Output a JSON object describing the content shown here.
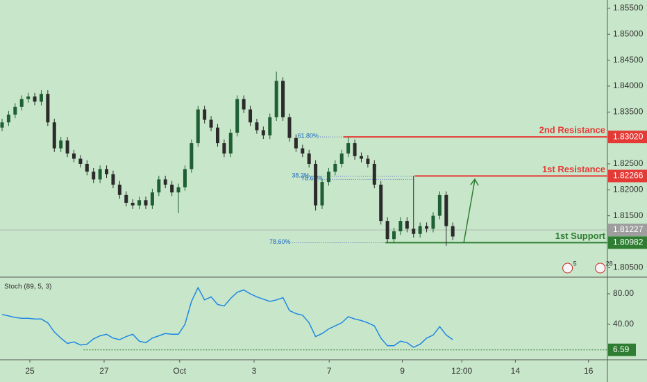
{
  "chart_data": [
    {
      "type": "candlestick",
      "xlim": [
        0,
        93
      ],
      "ylim": [
        1.8033,
        1.8566
      ],
      "yticks": [
        {
          "value": 1.855,
          "label": "1.85500"
        },
        {
          "value": 1.85,
          "label": "1.85000"
        },
        {
          "value": 1.845,
          "label": "1.84500"
        },
        {
          "value": 1.84,
          "label": "1.84000"
        },
        {
          "value": 1.835,
          "label": "1.83500"
        },
        {
          "value": 1.825,
          "label": "1.82500"
        },
        {
          "value": 1.82,
          "label": "1.82000"
        },
        {
          "value": 1.815,
          "label": "1.81500"
        },
        {
          "value": 1.805,
          "label": "1.80500"
        }
      ],
      "up_color": "#1f5f35",
      "down_color": "#2b2b2b",
      "open": [
        1.832,
        1.833,
        1.8345,
        1.836,
        1.8375,
        1.838,
        1.837,
        1.8385,
        1.833,
        1.828,
        1.8295,
        1.827,
        1.826,
        1.825,
        1.8235,
        1.822,
        1.824,
        1.823,
        1.821,
        1.819,
        1.8175,
        1.817,
        1.818,
        1.817,
        1.8195,
        1.822,
        1.821,
        1.8195,
        1.8205,
        1.824,
        1.829,
        1.8355,
        1.8335,
        1.832,
        1.829,
        1.827,
        1.831,
        1.8375,
        1.8355,
        1.833,
        1.8315,
        1.8305,
        1.834,
        1.841,
        1.834,
        1.83,
        1.828,
        1.827,
        1.825,
        1.817,
        1.8215,
        1.8235,
        1.825,
        1.827,
        1.829,
        1.8265,
        1.826,
        1.825,
        1.821,
        1.814,
        1.8105,
        1.812,
        1.814,
        1.8125,
        1.8115,
        1.813,
        1.8125,
        1.815,
        1.819,
        1.813
      ],
      "high": [
        1.8337,
        1.8352,
        1.8367,
        1.8382,
        1.8387,
        1.8387,
        1.8392,
        1.8392,
        1.8337,
        1.8302,
        1.8302,
        1.8277,
        1.8267,
        1.8257,
        1.8242,
        1.8247,
        1.8247,
        1.8237,
        1.8217,
        1.8197,
        1.8182,
        1.8187,
        1.8187,
        1.8202,
        1.8227,
        1.8227,
        1.8217,
        1.8212,
        1.8247,
        1.8297,
        1.8362,
        1.8362,
        1.8342,
        1.8327,
        1.8297,
        1.8317,
        1.8382,
        1.8382,
        1.8362,
        1.8337,
        1.8322,
        1.8347,
        1.8428,
        1.8417,
        1.8347,
        1.8307,
        1.8287,
        1.8277,
        1.8257,
        1.8222,
        1.8242,
        1.8257,
        1.8277,
        1.8302,
        1.8297,
        1.8272,
        1.8267,
        1.8257,
        1.8217,
        1.8147,
        1.8127,
        1.8147,
        1.8147,
        1.8227,
        1.8137,
        1.8137,
        1.8157,
        1.8197,
        1.8197,
        1.8137
      ],
      "low": [
        1.8313,
        1.8323,
        1.8338,
        1.8353,
        1.8368,
        1.8363,
        1.8363,
        1.8323,
        1.8273,
        1.8273,
        1.8263,
        1.8253,
        1.8243,
        1.8228,
        1.8213,
        1.8213,
        1.8223,
        1.8203,
        1.8183,
        1.8168,
        1.8163,
        1.8163,
        1.8163,
        1.8163,
        1.8188,
        1.8203,
        1.8188,
        1.8155,
        1.8198,
        1.8233,
        1.8283,
        1.8328,
        1.8313,
        1.8283,
        1.8263,
        1.8263,
        1.8303,
        1.8348,
        1.8323,
        1.8308,
        1.8298,
        1.8298,
        1.8333,
        1.8333,
        1.8293,
        1.8273,
        1.8263,
        1.8243,
        1.816,
        1.8163,
        1.8208,
        1.8228,
        1.8243,
        1.8263,
        1.8258,
        1.8253,
        1.8243,
        1.8203,
        1.8133,
        1.8098,
        1.8098,
        1.8113,
        1.8118,
        1.8108,
        1.8108,
        1.8118,
        1.8118,
        1.8143,
        1.8092,
        1.8103
      ],
      "close": [
        1.833,
        1.8345,
        1.836,
        1.8375,
        1.838,
        1.837,
        1.8385,
        1.833,
        1.828,
        1.8295,
        1.827,
        1.826,
        1.825,
        1.8235,
        1.822,
        1.824,
        1.823,
        1.821,
        1.819,
        1.8175,
        1.817,
        1.818,
        1.817,
        1.8195,
        1.822,
        1.821,
        1.8195,
        1.8205,
        1.824,
        1.829,
        1.8355,
        1.8335,
        1.832,
        1.829,
        1.827,
        1.831,
        1.8375,
        1.8355,
        1.833,
        1.8315,
        1.8305,
        1.834,
        1.841,
        1.834,
        1.83,
        1.828,
        1.827,
        1.825,
        1.817,
        1.8215,
        1.8235,
        1.825,
        1.827,
        1.829,
        1.8265,
        1.826,
        1.825,
        1.821,
        1.814,
        1.8105,
        1.812,
        1.814,
        1.8125,
        1.8115,
        1.813,
        1.8125,
        1.815,
        1.819,
        1.813,
        1.811
      ],
      "last": {
        "value": 1.81227,
        "label": "1.81227",
        "color": "#9e9e9e"
      },
      "levels": [
        {
          "name": "2nd Resistance",
          "value": 1.8302,
          "label": "1.83020",
          "color": "#e53935",
          "x_start": 52.6
        },
        {
          "name": "1st Resistance",
          "value": 1.82266,
          "label": "1.82266",
          "color": "#e53935",
          "x_start": 63.5
        },
        {
          "name": "1st Support",
          "value": 1.80982,
          "label": "1.80982",
          "color": "#2e7d32",
          "x_start": 59
        }
      ],
      "fibs": [
        {
          "label": "61.80%",
          "value": 1.8302,
          "x_start": 49,
          "x_end": 52.6
        },
        {
          "label": "38.2%",
          "value": 1.8226,
          "x_start": 47.6,
          "x_end": 63.5
        },
        {
          "label": "78.60%",
          "value": 1.822,
          "x_start": 49.6,
          "x_end": 63.5
        },
        {
          "label": "78.60%",
          "value": 1.8098,
          "x_start": 44.7,
          "x_end": 59
        }
      ],
      "events": [
        {
          "label": "5",
          "x": 86.9
        },
        {
          "label": "28",
          "x": 91.9
        }
      ]
    },
    {
      "type": "line",
      "title": "Stoch (89, 5, 3)",
      "xlim": [
        0,
        93
      ],
      "ylim": [
        -6.4,
        100.9
      ],
      "yticks": [
        {
          "value": 80,
          "label": "80.00"
        },
        {
          "value": 40,
          "label": "40.00"
        }
      ],
      "xticks": [
        {
          "value": 4.57,
          "label": "25"
        },
        {
          "value": 15.94,
          "label": "27"
        },
        {
          "value": 27.5,
          "label": "Oct"
        },
        {
          "value": 38.9,
          "label": "3"
        },
        {
          "value": 50.4,
          "label": "7"
        },
        {
          "value": 61.6,
          "label": "9"
        },
        {
          "value": 70.7,
          "label": "12:00"
        },
        {
          "value": 78.9,
          "label": "14"
        },
        {
          "value": 90.1,
          "label": "16"
        }
      ],
      "color": "#1e88e5",
      "values": [
        53,
        51,
        49,
        48,
        48,
        47,
        47,
        42,
        30,
        22,
        15,
        17,
        13,
        14,
        21,
        25,
        27,
        22,
        20,
        24,
        27,
        18,
        16,
        22,
        25,
        28,
        27,
        27,
        40,
        70,
        88,
        72,
        76,
        66,
        64,
        74,
        82,
        85,
        80,
        76,
        73,
        70,
        72,
        75,
        58,
        54,
        52,
        42,
        24,
        28,
        34,
        38,
        42,
        50,
        47,
        45,
        42,
        38,
        22,
        12,
        12,
        18,
        16,
        10,
        14,
        22,
        26,
        37,
        26,
        20
      ],
      "last": {
        "value": 6.59,
        "label": "6.59",
        "color": "#2e7d32",
        "x_start": 12.8
      }
    }
  ]
}
